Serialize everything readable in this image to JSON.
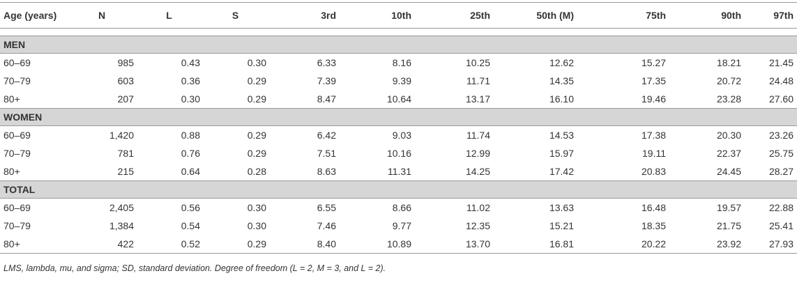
{
  "table": {
    "header": [
      "Age (years)",
      "N",
      "L",
      "S",
      "3rd",
      "10th",
      "25th",
      "50th (M)",
      "75th",
      "90th",
      "97th"
    ],
    "sections": [
      {
        "label": "MEN",
        "rows": [
          [
            "60–69",
            "985",
            "0.43",
            "0.30",
            "6.33",
            "8.16",
            "10.25",
            "12.62",
            "15.27",
            "18.21",
            "21.45"
          ],
          [
            "70–79",
            "603",
            "0.36",
            "0.29",
            "7.39",
            "9.39",
            "11.71",
            "14.35",
            "17.35",
            "20.72",
            "24.48"
          ],
          [
            "80+",
            "207",
            "0.30",
            "0.29",
            "8.47",
            "10.64",
            "13.17",
            "16.10",
            "19.46",
            "23.28",
            "27.60"
          ]
        ]
      },
      {
        "label": "WOMEN",
        "rows": [
          [
            "60–69",
            "1,420",
            "0.88",
            "0.29",
            "6.42",
            "9.03",
            "11.74",
            "14.53",
            "17.38",
            "20.30",
            "23.26"
          ],
          [
            "70–79",
            "781",
            "0.76",
            "0.29",
            "7.51",
            "10.16",
            "12.99",
            "15.97",
            "19.11",
            "22.37",
            "25.75"
          ],
          [
            "80+",
            "215",
            "0.64",
            "0.28",
            "8.63",
            "11.31",
            "14.25",
            "17.42",
            "20.83",
            "24.45",
            "28.27"
          ]
        ]
      },
      {
        "label": "TOTAL",
        "rows": [
          [
            "60–69",
            "2,405",
            "0.56",
            "0.30",
            "6.55",
            "8.66",
            "11.02",
            "13.63",
            "16.48",
            "19.57",
            "22.88"
          ],
          [
            "70–79",
            "1,384",
            "0.54",
            "0.30",
            "7.46",
            "9.77",
            "12.35",
            "15.21",
            "18.35",
            "21.75",
            "25.41"
          ],
          [
            "80+",
            "422",
            "0.52",
            "0.29",
            "8.40",
            "10.89",
            "13.70",
            "16.81",
            "20.22",
            "23.92",
            "27.93"
          ]
        ]
      }
    ]
  },
  "footnote": "LMS, lambda, mu, and sigma; SD, standard deviation. Degree of freedom (L = 2, M = 3, and L = 2)."
}
